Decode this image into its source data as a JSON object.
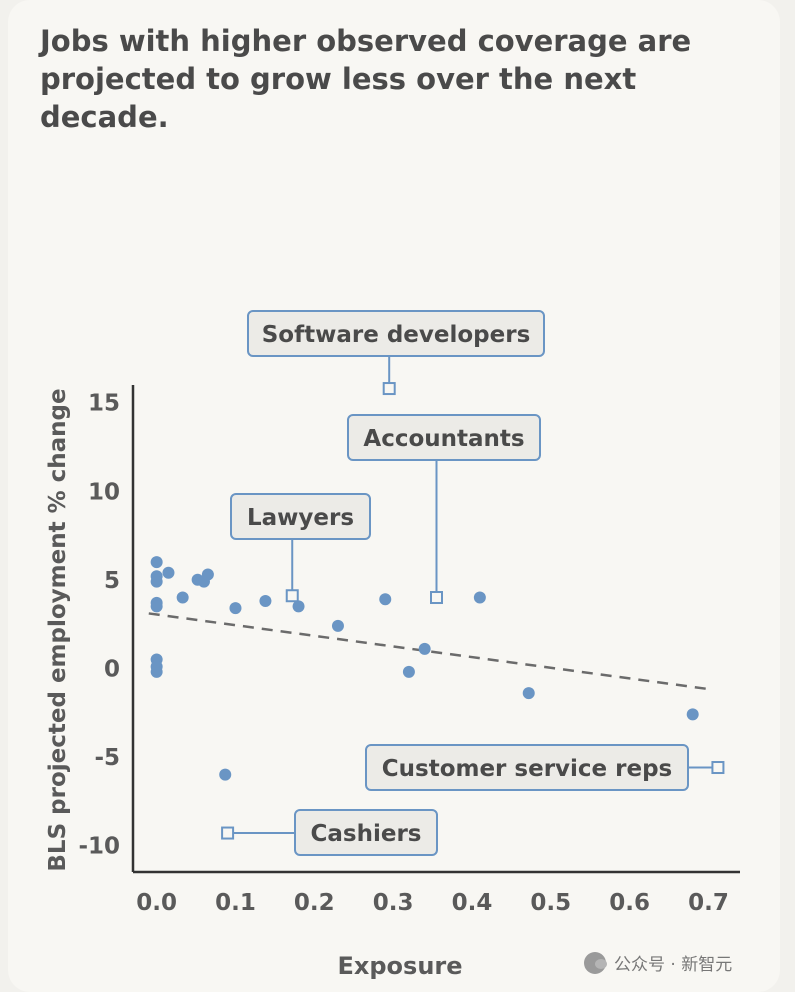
{
  "title": "Jobs with higher observed coverage are projected to grow less over the next decade.",
  "watermark": "公众号 · 新智元",
  "colors": {
    "point": "#6a95c4",
    "trend": "#6b6b6b",
    "callout_border": "#6a95c4",
    "callout_fill": "#ecebe7",
    "axis": "#333333",
    "text": "#555555"
  },
  "chart_data": {
    "type": "scatter",
    "xlabel": "Exposure",
    "ylabel": "BLS projected employment % change",
    "xlim": [
      -0.03,
      0.74
    ],
    "ylim": [
      -11.5,
      16
    ],
    "x_ticks": [
      0.0,
      0.1,
      0.2,
      0.3,
      0.4,
      0.5,
      0.6,
      0.7
    ],
    "x_tick_labels": [
      "0.0",
      "0.1",
      "0.2",
      "0.3",
      "0.4",
      "0.5",
      "0.6",
      "0.7"
    ],
    "y_ticks": [
      15,
      10,
      5,
      0,
      -5,
      -10
    ],
    "y_tick_labels": [
      "15",
      "10",
      "5",
      "0",
      "-5",
      "-10"
    ],
    "grid": false,
    "points": [
      {
        "x": 0.0,
        "y": 6.0
      },
      {
        "x": 0.0,
        "y": 5.2
      },
      {
        "x": 0.0,
        "y": 4.9
      },
      {
        "x": 0.0,
        "y": 3.7
      },
      {
        "x": 0.0,
        "y": 3.5
      },
      {
        "x": 0.0,
        "y": 0.5
      },
      {
        "x": 0.0,
        "y": 0.1
      },
      {
        "x": 0.0,
        "y": -0.2
      },
      {
        "x": 0.015,
        "y": 5.4
      },
      {
        "x": 0.033,
        "y": 4.0
      },
      {
        "x": 0.052,
        "y": 5.0
      },
      {
        "x": 0.06,
        "y": 4.9
      },
      {
        "x": 0.065,
        "y": 5.3
      },
      {
        "x": 0.1,
        "y": 3.4
      },
      {
        "x": 0.138,
        "y": 3.8
      },
      {
        "x": 0.18,
        "y": 3.5
      },
      {
        "x": 0.23,
        "y": 2.4
      },
      {
        "x": 0.29,
        "y": 3.9
      },
      {
        "x": 0.32,
        "y": -0.2
      },
      {
        "x": 0.34,
        "y": 1.1
      },
      {
        "x": 0.41,
        "y": 4.0
      },
      {
        "x": 0.472,
        "y": -1.4
      },
      {
        "x": 0.68,
        "y": -2.6
      },
      {
        "x": 0.087,
        "y": -6.0
      }
    ],
    "trendline": {
      "x": [
        -0.01,
        0.705
      ],
      "y": [
        3.1,
        -1.2
      ]
    },
    "annotations": [
      {
        "label": "Software developers",
        "x": 0.295,
        "y": 15.8
      },
      {
        "label": "Accountants",
        "x": 0.355,
        "y": 4.0
      },
      {
        "label": "Lawyers",
        "x": 0.172,
        "y": 4.1
      },
      {
        "label": "Customer service reps",
        "x": 0.712,
        "y": -5.6
      },
      {
        "label": "Cashiers",
        "x": 0.09,
        "y": -9.3
      }
    ]
  }
}
